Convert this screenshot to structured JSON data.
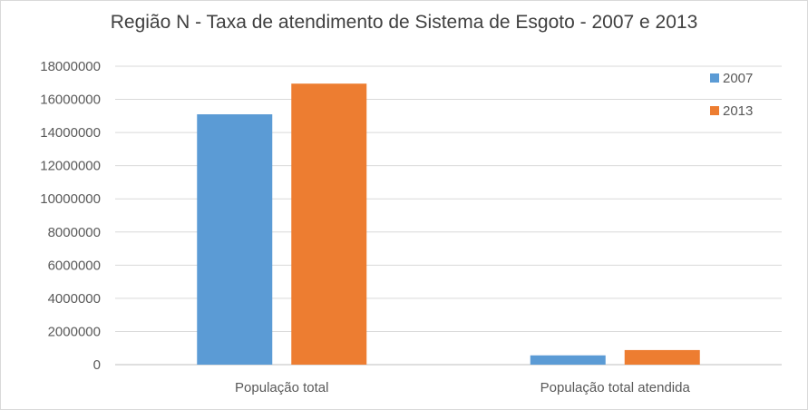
{
  "chart_data": {
    "type": "bar",
    "title": "Região N - Taxa de atendimento de Sistema de Esgoto - 2007 e 2013",
    "xlabel": "",
    "ylabel": "",
    "categories": [
      "População total",
      "População total atendida"
    ],
    "series": [
      {
        "name": "2007",
        "color": "#5b9bd5",
        "values": [
          15100000,
          560000
        ]
      },
      {
        "name": "2013",
        "color": "#ed7d31",
        "values": [
          16950000,
          880000
        ]
      }
    ],
    "ylim": [
      0,
      18000000
    ],
    "yticks": [
      "0",
      "2000000",
      "4000000",
      "6000000",
      "8000000",
      "10000000",
      "12000000",
      "14000000",
      "16000000",
      "18000000"
    ],
    "grid": true,
    "legend_position": "top-right"
  }
}
